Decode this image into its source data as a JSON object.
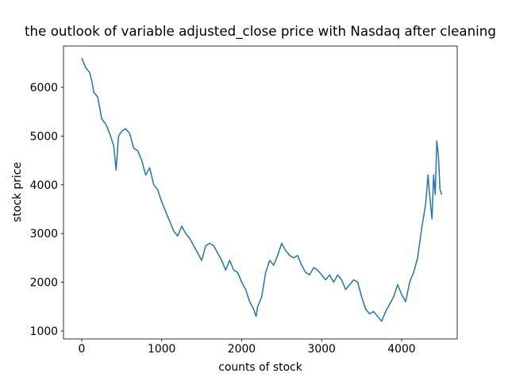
{
  "chart_data": {
    "type": "line",
    "title": "the outlook of variable adjusted_close price with Nasdaq after cleaning",
    "x_label": "counts of stock",
    "y_label": "stock price",
    "x": [
      0,
      50,
      100,
      130,
      150,
      200,
      250,
      300,
      350,
      400,
      430,
      460,
      500,
      550,
      600,
      650,
      700,
      750,
      800,
      850,
      900,
      950,
      1000,
      1050,
      1100,
      1150,
      1200,
      1250,
      1300,
      1350,
      1400,
      1450,
      1500,
      1550,
      1600,
      1650,
      1700,
      1750,
      1800,
      1850,
      1900,
      1950,
      2000,
      2050,
      2100,
      2150,
      2180,
      2200,
      2250,
      2300,
      2350,
      2400,
      2450,
      2500,
      2550,
      2600,
      2650,
      2700,
      2750,
      2800,
      2850,
      2900,
      2950,
      3000,
      3050,
      3100,
      3150,
      3200,
      3250,
      3300,
      3350,
      3400,
      3450,
      3500,
      3550,
      3600,
      3650,
      3700,
      3750,
      3800,
      3850,
      3900,
      3950,
      4000,
      4050,
      4100,
      4150,
      4200,
      4250,
      4300,
      4330,
      4350,
      4380,
      4400,
      4420,
      4440,
      4460,
      4480,
      4500
    ],
    "series": [
      {
        "color": "#1f77b4",
        "values": [
          6600,
          6400,
          6300,
          6100,
          5900,
          5800,
          5350,
          5250,
          5050,
          4800,
          4300,
          5000,
          5100,
          5150,
          5050,
          4750,
          4700,
          4500,
          4200,
          4350,
          4000,
          3900,
          3650,
          3450,
          3250,
          3050,
          2950,
          3150,
          3000,
          2900,
          2750,
          2600,
          2450,
          2750,
          2800,
          2750,
          2600,
          2450,
          2250,
          2450,
          2250,
          2200,
          2000,
          1850,
          1600,
          1450,
          1300,
          1500,
          1700,
          2200,
          2450,
          2350,
          2550,
          2800,
          2650,
          2550,
          2500,
          2550,
          2350,
          2200,
          2150,
          2300,
          2250,
          2150,
          2050,
          2150,
          2000,
          2150,
          2050,
          1850,
          1950,
          2050,
          2000,
          1700,
          1450,
          1350,
          1400,
          1300,
          1200,
          1400,
          1550,
          1700,
          1950,
          1750,
          1600,
          2000,
          2200,
          2500,
          3100,
          3600,
          4200,
          3800,
          3300,
          4200,
          3800,
          4900,
          4600,
          3900,
          3800
        ]
      }
    ],
    "xlim": [
      -228,
      4695
    ],
    "ylim": [
      837,
      6847
    ],
    "xticks": [
      0,
      1000,
      2000,
      3000,
      4000
    ],
    "yticks": [
      1000,
      2000,
      3000,
      4000,
      5000,
      6000
    ],
    "grid": false
  }
}
